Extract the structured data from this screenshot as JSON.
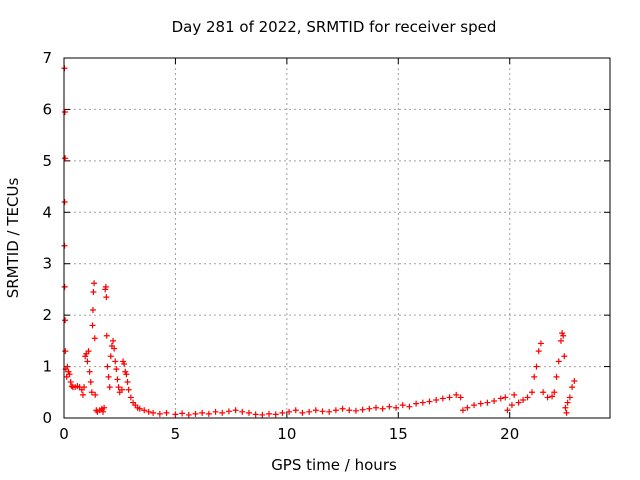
{
  "chart_data": {
    "type": "scatter",
    "title": "Day 281 of 2022, SRMTID for receiver sped",
    "xlabel": "GPS time / hours",
    "ylabel": "SRMTID / TECUs",
    "xlim": [
      0,
      24.5
    ],
    "ylim": [
      0,
      7
    ],
    "x_ticks": [
      0,
      5,
      10,
      15,
      20
    ],
    "y_ticks": [
      0,
      1,
      2,
      3,
      4,
      5,
      6,
      7
    ],
    "grid": true,
    "marker": "+",
    "series": [
      {
        "color": "#ff0000",
        "points": [
          [
            0.02,
            6.8
          ],
          [
            0.04,
            5.95
          ],
          [
            0.05,
            5.05
          ],
          [
            0.03,
            4.2
          ],
          [
            0.02,
            3.35
          ],
          [
            0.03,
            2.55
          ],
          [
            0.05,
            1.9
          ],
          [
            0.06,
            1.3
          ],
          [
            0.08,
            0.95
          ],
          [
            0.12,
            0.8
          ],
          [
            0.15,
            1.0
          ],
          [
            0.2,
            0.9
          ],
          [
            0.25,
            0.85
          ],
          [
            0.3,
            0.7
          ],
          [
            0.35,
            0.62
          ],
          [
            0.4,
            0.6
          ],
          [
            0.5,
            0.6
          ],
          [
            0.6,
            0.62
          ],
          [
            0.7,
            0.6
          ],
          [
            0.8,
            0.55
          ],
          [
            0.85,
            0.45
          ],
          [
            0.9,
            0.6
          ],
          [
            0.95,
            1.2
          ],
          [
            1.0,
            1.25
          ],
          [
            1.05,
            1.1
          ],
          [
            1.1,
            1.3
          ],
          [
            1.15,
            0.9
          ],
          [
            1.2,
            0.7
          ],
          [
            1.25,
            0.5
          ],
          [
            1.28,
            1.8
          ],
          [
            1.3,
            2.1
          ],
          [
            1.32,
            2.45
          ],
          [
            1.35,
            2.62
          ],
          [
            1.38,
            1.55
          ],
          [
            1.4,
            0.45
          ],
          [
            1.45,
            0.15
          ],
          [
            1.5,
            0.12
          ],
          [
            1.6,
            0.15
          ],
          [
            1.7,
            0.18
          ],
          [
            1.75,
            0.12
          ],
          [
            1.8,
            0.2
          ],
          [
            1.85,
            2.5
          ],
          [
            1.88,
            2.55
          ],
          [
            1.9,
            2.35
          ],
          [
            1.92,
            1.6
          ],
          [
            1.95,
            1.0
          ],
          [
            2.0,
            0.8
          ],
          [
            2.05,
            0.6
          ],
          [
            2.1,
            1.2
          ],
          [
            2.15,
            1.4
          ],
          [
            2.2,
            1.5
          ],
          [
            2.25,
            1.35
          ],
          [
            2.3,
            1.1
          ],
          [
            2.35,
            0.95
          ],
          [
            2.4,
            0.75
          ],
          [
            2.45,
            0.6
          ],
          [
            2.5,
            0.5
          ],
          [
            2.6,
            0.55
          ],
          [
            2.65,
            1.1
          ],
          [
            2.7,
            1.05
          ],
          [
            2.75,
            0.9
          ],
          [
            2.8,
            0.85
          ],
          [
            2.85,
            0.7
          ],
          [
            2.9,
            0.55
          ],
          [
            3.0,
            0.4
          ],
          [
            3.1,
            0.3
          ],
          [
            3.2,
            0.25
          ],
          [
            3.3,
            0.2
          ],
          [
            3.4,
            0.18
          ],
          [
            3.6,
            0.15
          ],
          [
            3.8,
            0.12
          ],
          [
            4.0,
            0.1
          ],
          [
            4.3,
            0.08
          ],
          [
            4.6,
            0.1
          ],
          [
            5.0,
            0.07
          ],
          [
            5.3,
            0.09
          ],
          [
            5.6,
            0.06
          ],
          [
            5.9,
            0.08
          ],
          [
            6.2,
            0.1
          ],
          [
            6.5,
            0.08
          ],
          [
            6.8,
            0.12
          ],
          [
            7.1,
            0.1
          ],
          [
            7.4,
            0.13
          ],
          [
            7.7,
            0.15
          ],
          [
            8.0,
            0.12
          ],
          [
            8.3,
            0.1
          ],
          [
            8.6,
            0.07
          ],
          [
            8.9,
            0.06
          ],
          [
            9.2,
            0.08
          ],
          [
            9.5,
            0.07
          ],
          [
            9.8,
            0.1
          ],
          [
            10.1,
            0.12
          ],
          [
            10.4,
            0.15
          ],
          [
            10.7,
            0.1
          ],
          [
            11.0,
            0.12
          ],
          [
            11.3,
            0.15
          ],
          [
            11.6,
            0.13
          ],
          [
            11.9,
            0.12
          ],
          [
            12.2,
            0.15
          ],
          [
            12.5,
            0.18
          ],
          [
            12.8,
            0.15
          ],
          [
            13.1,
            0.14
          ],
          [
            13.4,
            0.16
          ],
          [
            13.7,
            0.18
          ],
          [
            14.0,
            0.2
          ],
          [
            14.3,
            0.18
          ],
          [
            14.6,
            0.22
          ],
          [
            14.9,
            0.2
          ],
          [
            15.2,
            0.25
          ],
          [
            15.5,
            0.22
          ],
          [
            15.8,
            0.28
          ],
          [
            16.1,
            0.3
          ],
          [
            16.4,
            0.32
          ],
          [
            16.7,
            0.35
          ],
          [
            17.0,
            0.38
          ],
          [
            17.3,
            0.4
          ],
          [
            17.6,
            0.45
          ],
          [
            17.8,
            0.4
          ],
          [
            17.9,
            0.15
          ],
          [
            18.1,
            0.2
          ],
          [
            18.4,
            0.25
          ],
          [
            18.7,
            0.28
          ],
          [
            19.0,
            0.3
          ],
          [
            19.3,
            0.33
          ],
          [
            19.6,
            0.38
          ],
          [
            19.8,
            0.4
          ],
          [
            19.9,
            0.15
          ],
          [
            20.1,
            0.25
          ],
          [
            20.2,
            0.45
          ],
          [
            20.4,
            0.3
          ],
          [
            20.6,
            0.35
          ],
          [
            20.8,
            0.4
          ],
          [
            21.0,
            0.5
          ],
          [
            21.1,
            0.8
          ],
          [
            21.2,
            1.0
          ],
          [
            21.3,
            1.3
          ],
          [
            21.4,
            1.45
          ],
          [
            21.5,
            0.5
          ],
          [
            21.7,
            0.4
          ],
          [
            21.9,
            0.42
          ],
          [
            22.0,
            0.5
          ],
          [
            22.1,
            0.8
          ],
          [
            22.2,
            1.1
          ],
          [
            22.3,
            1.5
          ],
          [
            22.35,
            1.65
          ],
          [
            22.4,
            1.6
          ],
          [
            22.45,
            1.2
          ],
          [
            22.5,
            0.2
          ],
          [
            22.55,
            0.1
          ],
          [
            22.6,
            0.3
          ],
          [
            22.7,
            0.4
          ],
          [
            22.8,
            0.6
          ],
          [
            22.9,
            0.72
          ]
        ]
      }
    ]
  }
}
